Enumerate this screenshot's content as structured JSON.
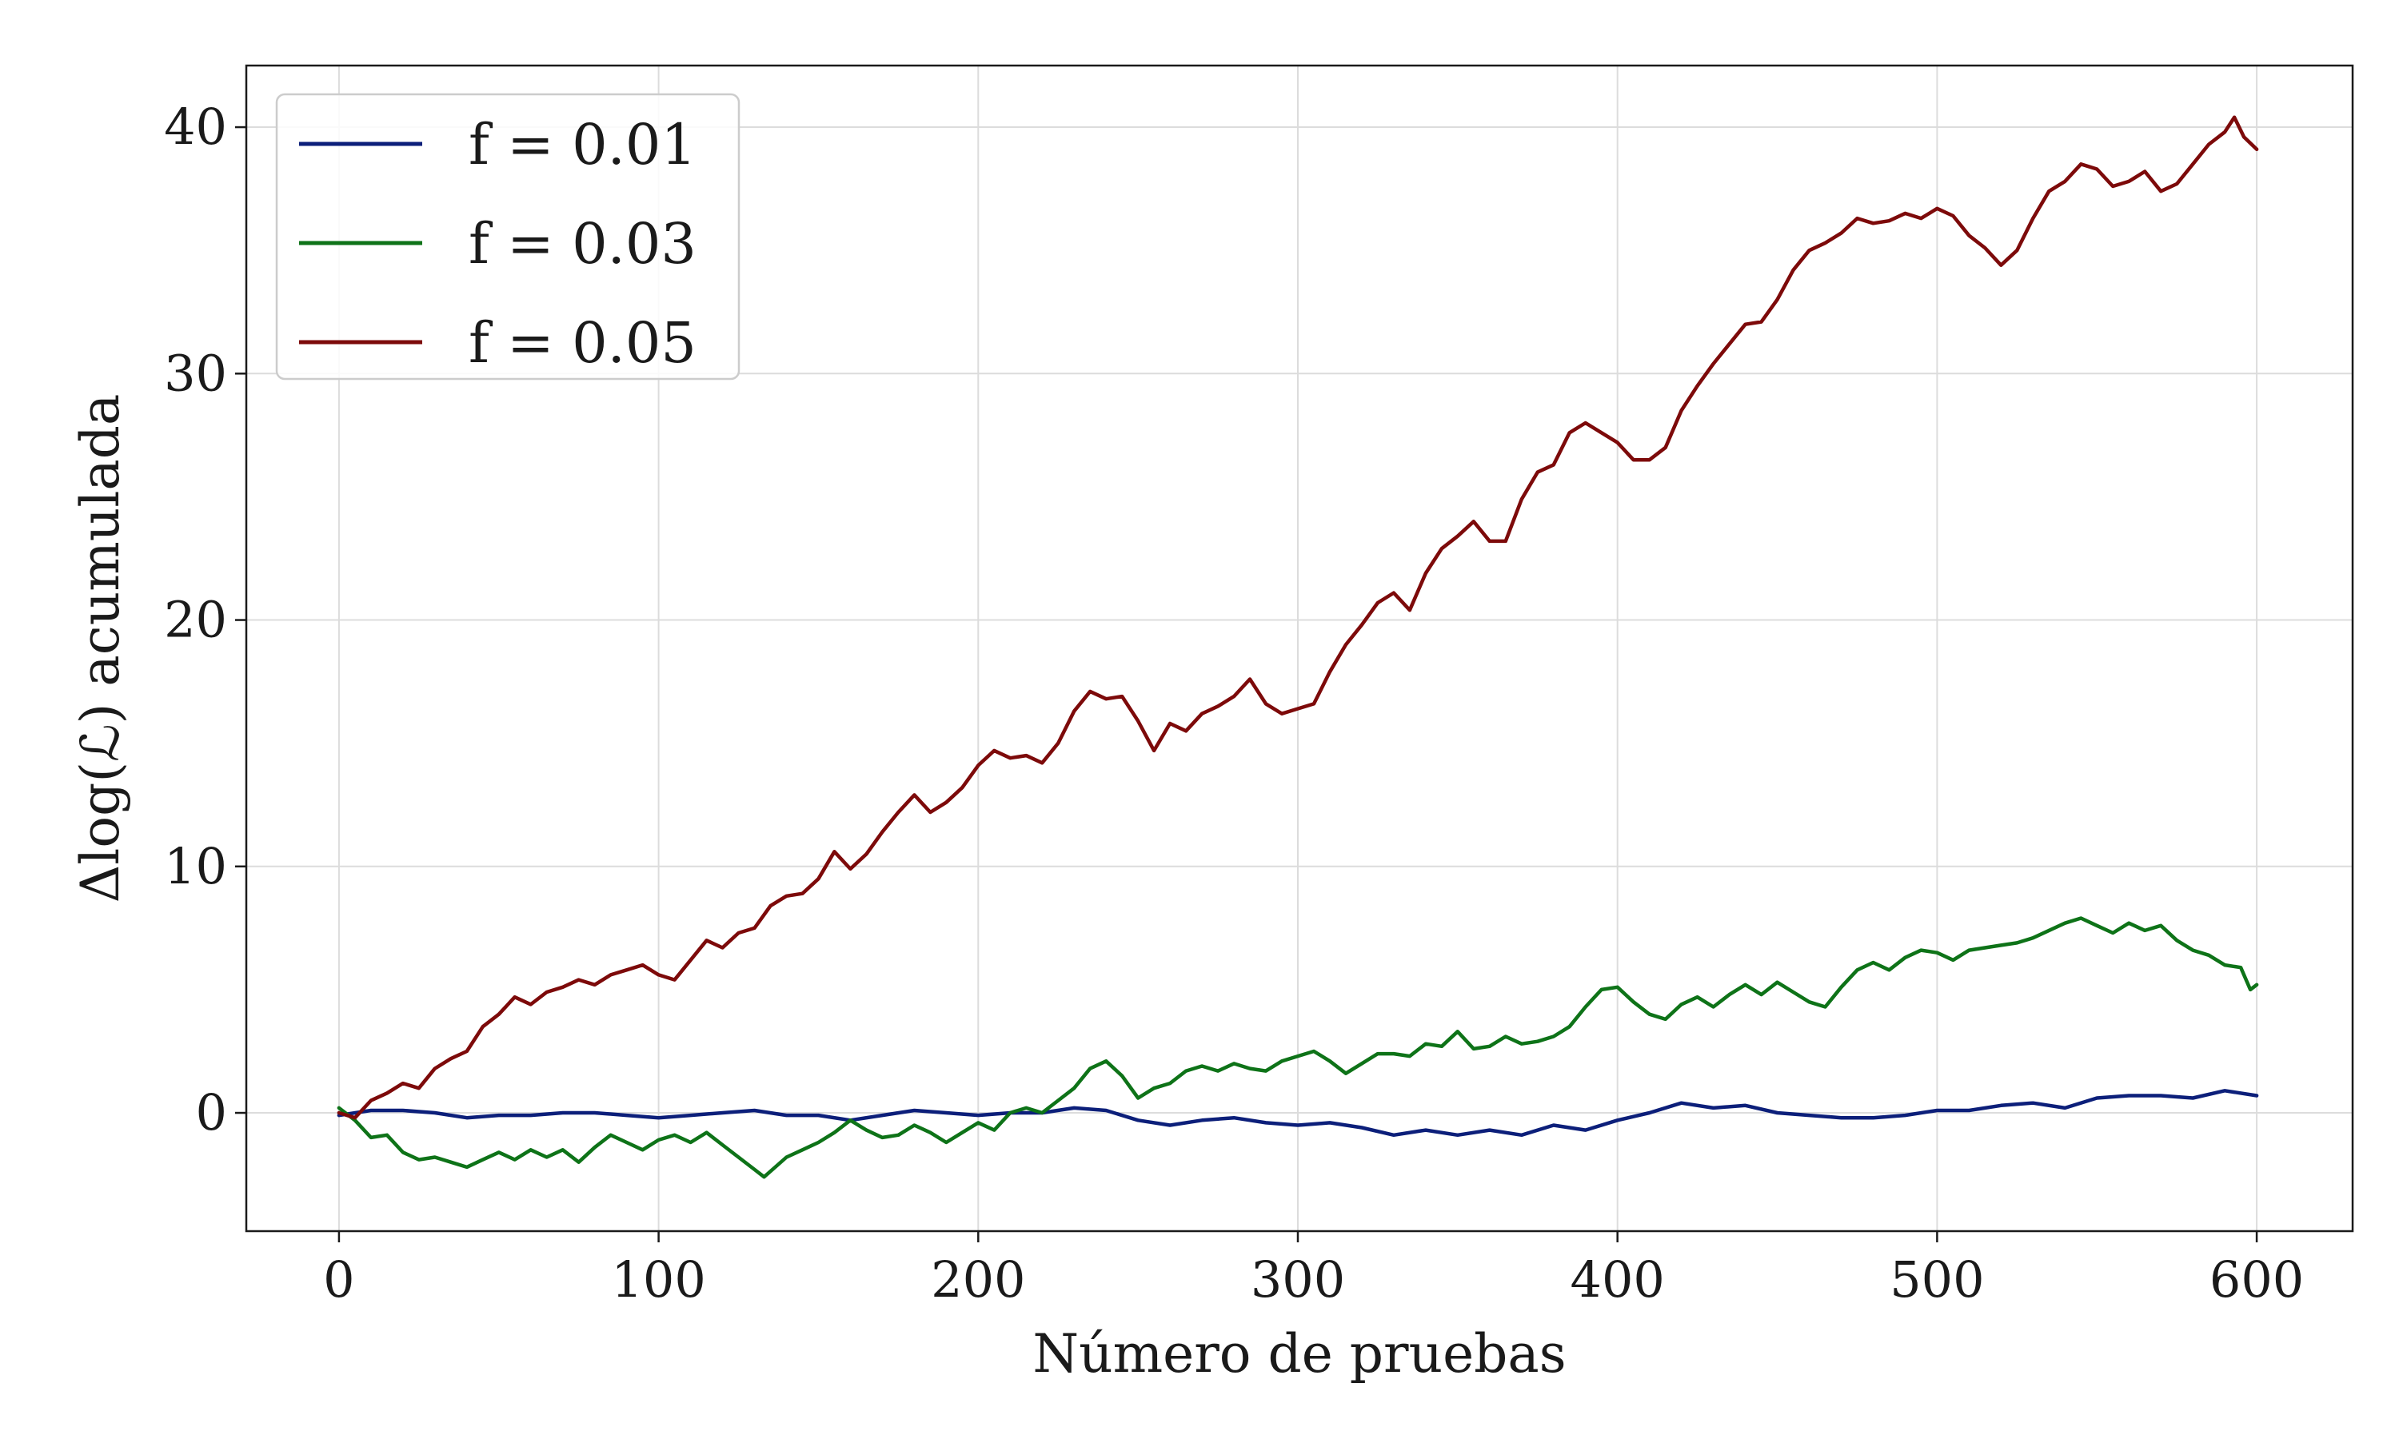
{
  "chart_data": {
    "type": "line",
    "title": "",
    "xlabel": "Número de pruebas",
    "ylabel": "Δlog(ℒ) acumulada",
    "xlim": [
      -29,
      630
    ],
    "ylim": [
      -4.8,
      42.5
    ],
    "xticks": [
      0,
      100,
      200,
      300,
      400,
      500,
      600
    ],
    "yticks": [
      0,
      10,
      20,
      30,
      40
    ],
    "xtick_labels": [
      "0",
      "100",
      "200",
      "300",
      "400",
      "500",
      "600"
    ],
    "ytick_labels": [
      "0",
      "10",
      "20",
      "30",
      "40"
    ],
    "grid": true,
    "legend_position": "upper-left",
    "series": [
      {
        "name": "f = 0.01",
        "color": "#0c1f7a",
        "points": [
          [
            0,
            -0.1
          ],
          [
            10,
            0.1
          ],
          [
            20,
            0.1
          ],
          [
            30,
            0.0
          ],
          [
            40,
            -0.2
          ],
          [
            50,
            -0.1
          ],
          [
            60,
            -0.1
          ],
          [
            70,
            0.0
          ],
          [
            80,
            0.0
          ],
          [
            90,
            -0.1
          ],
          [
            100,
            -0.2
          ],
          [
            110,
            -0.1
          ],
          [
            120,
            0.0
          ],
          [
            130,
            0.1
          ],
          [
            140,
            -0.1
          ],
          [
            150,
            -0.1
          ],
          [
            160,
            -0.3
          ],
          [
            170,
            -0.1
          ],
          [
            180,
            0.1
          ],
          [
            190,
            0.0
          ],
          [
            200,
            -0.1
          ],
          [
            210,
            0.0
          ],
          [
            220,
            0.0
          ],
          [
            230,
            0.2
          ],
          [
            240,
            0.1
          ],
          [
            250,
            -0.3
          ],
          [
            260,
            -0.5
          ],
          [
            270,
            -0.3
          ],
          [
            280,
            -0.2
          ],
          [
            290,
            -0.4
          ],
          [
            300,
            -0.5
          ],
          [
            310,
            -0.4
          ],
          [
            320,
            -0.6
          ],
          [
            330,
            -0.9
          ],
          [
            340,
            -0.7
          ],
          [
            350,
            -0.9
          ],
          [
            360,
            -0.7
          ],
          [
            370,
            -0.9
          ],
          [
            380,
            -0.5
          ],
          [
            390,
            -0.7
          ],
          [
            400,
            -0.3
          ],
          [
            410,
            0.0
          ],
          [
            420,
            0.4
          ],
          [
            430,
            0.2
          ],
          [
            440,
            0.3
          ],
          [
            450,
            0.0
          ],
          [
            460,
            -0.1
          ],
          [
            470,
            -0.2
          ],
          [
            480,
            -0.2
          ],
          [
            490,
            -0.1
          ],
          [
            500,
            0.1
          ],
          [
            510,
            0.1
          ],
          [
            520,
            0.3
          ],
          [
            530,
            0.4
          ],
          [
            540,
            0.2
          ],
          [
            550,
            0.6
          ],
          [
            560,
            0.7
          ],
          [
            570,
            0.7
          ],
          [
            580,
            0.6
          ],
          [
            590,
            0.9
          ],
          [
            600,
            0.7
          ]
        ]
      },
      {
        "name": "f = 0.03",
        "color": "#0e7318",
        "points": [
          [
            0,
            0.2
          ],
          [
            5,
            -0.3
          ],
          [
            10,
            -1.0
          ],
          [
            15,
            -0.9
          ],
          [
            20,
            -1.6
          ],
          [
            25,
            -1.9
          ],
          [
            30,
            -1.8
          ],
          [
            35,
            -2.0
          ],
          [
            40,
            -2.2
          ],
          [
            45,
            -1.9
          ],
          [
            50,
            -1.6
          ],
          [
            55,
            -1.9
          ],
          [
            60,
            -1.5
          ],
          [
            65,
            -1.8
          ],
          [
            70,
            -1.5
          ],
          [
            75,
            -2.0
          ],
          [
            80,
            -1.4
          ],
          [
            85,
            -0.9
          ],
          [
            90,
            -1.2
          ],
          [
            95,
            -1.5
          ],
          [
            100,
            -1.1
          ],
          [
            105,
            -0.9
          ],
          [
            110,
            -1.2
          ],
          [
            115,
            -0.8
          ],
          [
            120,
            -1.3
          ],
          [
            125,
            -1.8
          ],
          [
            130,
            -2.3
          ],
          [
            133,
            -2.6
          ],
          [
            140,
            -1.8
          ],
          [
            145,
            -1.5
          ],
          [
            150,
            -1.2
          ],
          [
            155,
            -0.8
          ],
          [
            160,
            -0.3
          ],
          [
            165,
            -0.7
          ],
          [
            170,
            -1.0
          ],
          [
            175,
            -0.9
          ],
          [
            180,
            -0.5
          ],
          [
            185,
            -0.8
          ],
          [
            190,
            -1.2
          ],
          [
            195,
            -0.8
          ],
          [
            200,
            -0.4
          ],
          [
            205,
            -0.7
          ],
          [
            210,
            0.0
          ],
          [
            215,
            0.2
          ],
          [
            220,
            0.0
          ],
          [
            225,
            0.5
          ],
          [
            230,
            1.0
          ],
          [
            235,
            1.8
          ],
          [
            240,
            2.1
          ],
          [
            245,
            1.5
          ],
          [
            250,
            0.6
          ],
          [
            255,
            1.0
          ],
          [
            260,
            1.2
          ],
          [
            265,
            1.7
          ],
          [
            270,
            1.9
          ],
          [
            275,
            1.7
          ],
          [
            280,
            2.0
          ],
          [
            285,
            1.8
          ],
          [
            290,
            1.7
          ],
          [
            295,
            2.1
          ],
          [
            300,
            2.3
          ],
          [
            305,
            2.5
          ],
          [
            310,
            2.1
          ],
          [
            315,
            1.6
          ],
          [
            320,
            2.0
          ],
          [
            325,
            2.4
          ],
          [
            330,
            2.4
          ],
          [
            335,
            2.3
          ],
          [
            340,
            2.8
          ],
          [
            345,
            2.7
          ],
          [
            350,
            3.3
          ],
          [
            355,
            2.6
          ],
          [
            360,
            2.7
          ],
          [
            365,
            3.1
          ],
          [
            370,
            2.8
          ],
          [
            375,
            2.9
          ],
          [
            380,
            3.1
          ],
          [
            385,
            3.5
          ],
          [
            390,
            4.3
          ],
          [
            395,
            5.0
          ],
          [
            400,
            5.1
          ],
          [
            405,
            4.5
          ],
          [
            410,
            4.0
          ],
          [
            415,
            3.8
          ],
          [
            420,
            4.4
          ],
          [
            425,
            4.7
          ],
          [
            430,
            4.3
          ],
          [
            435,
            4.8
          ],
          [
            440,
            5.2
          ],
          [
            445,
            4.8
          ],
          [
            450,
            5.3
          ],
          [
            455,
            4.9
          ],
          [
            460,
            4.5
          ],
          [
            465,
            4.3
          ],
          [
            470,
            5.1
          ],
          [
            475,
            5.8
          ],
          [
            480,
            6.1
          ],
          [
            485,
            5.8
          ],
          [
            490,
            6.3
          ],
          [
            495,
            6.6
          ],
          [
            500,
            6.5
          ],
          [
            505,
            6.2
          ],
          [
            510,
            6.6
          ],
          [
            515,
            6.7
          ],
          [
            520,
            6.8
          ],
          [
            525,
            6.9
          ],
          [
            530,
            7.1
          ],
          [
            535,
            7.4
          ],
          [
            540,
            7.7
          ],
          [
            545,
            7.9
          ],
          [
            550,
            7.6
          ],
          [
            555,
            7.3
          ],
          [
            560,
            7.7
          ],
          [
            565,
            7.4
          ],
          [
            570,
            7.6
          ],
          [
            575,
            7.0
          ],
          [
            580,
            6.6
          ],
          [
            585,
            6.4
          ],
          [
            590,
            6.0
          ],
          [
            595,
            5.9
          ],
          [
            598,
            5.0
          ],
          [
            600,
            5.2
          ]
        ]
      },
      {
        "name": "f = 0.05",
        "color": "#7d0a0a",
        "points": [
          [
            0,
            0.0
          ],
          [
            5,
            -0.2
          ],
          [
            10,
            0.5
          ],
          [
            15,
            0.8
          ],
          [
            20,
            1.2
          ],
          [
            25,
            1.0
          ],
          [
            30,
            1.8
          ],
          [
            35,
            2.2
          ],
          [
            40,
            2.5
          ],
          [
            45,
            3.5
          ],
          [
            50,
            4.0
          ],
          [
            55,
            4.7
          ],
          [
            60,
            4.4
          ],
          [
            65,
            4.9
          ],
          [
            70,
            5.1
          ],
          [
            75,
            5.4
          ],
          [
            80,
            5.2
          ],
          [
            85,
            5.6
          ],
          [
            90,
            5.8
          ],
          [
            95,
            6.0
          ],
          [
            100,
            5.6
          ],
          [
            105,
            5.4
          ],
          [
            110,
            6.2
          ],
          [
            115,
            7.0
          ],
          [
            120,
            6.7
          ],
          [
            125,
            7.3
          ],
          [
            130,
            7.5
          ],
          [
            135,
            8.4
          ],
          [
            140,
            8.8
          ],
          [
            145,
            8.9
          ],
          [
            150,
            9.5
          ],
          [
            155,
            10.6
          ],
          [
            160,
            9.9
          ],
          [
            165,
            10.5
          ],
          [
            170,
            11.4
          ],
          [
            175,
            12.2
          ],
          [
            180,
            12.9
          ],
          [
            185,
            12.2
          ],
          [
            190,
            12.6
          ],
          [
            195,
            13.2
          ],
          [
            200,
            14.1
          ],
          [
            205,
            14.7
          ],
          [
            210,
            14.4
          ],
          [
            215,
            14.5
          ],
          [
            220,
            14.2
          ],
          [
            225,
            15.0
          ],
          [
            230,
            16.3
          ],
          [
            235,
            17.1
          ],
          [
            240,
            16.8
          ],
          [
            245,
            16.9
          ],
          [
            250,
            15.9
          ],
          [
            255,
            14.7
          ],
          [
            260,
            15.8
          ],
          [
            265,
            15.5
          ],
          [
            270,
            16.2
          ],
          [
            275,
            16.5
          ],
          [
            280,
            16.9
          ],
          [
            285,
            17.6
          ],
          [
            290,
            16.6
          ],
          [
            295,
            16.2
          ],
          [
            300,
            16.4
          ],
          [
            305,
            16.6
          ],
          [
            310,
            17.9
          ],
          [
            315,
            19.0
          ],
          [
            320,
            19.8
          ],
          [
            325,
            20.7
          ],
          [
            330,
            21.1
          ],
          [
            335,
            20.4
          ],
          [
            340,
            21.9
          ],
          [
            345,
            22.9
          ],
          [
            350,
            23.4
          ],
          [
            355,
            24.0
          ],
          [
            360,
            23.2
          ],
          [
            365,
            23.2
          ],
          [
            370,
            24.9
          ],
          [
            375,
            26.0
          ],
          [
            380,
            26.3
          ],
          [
            385,
            27.6
          ],
          [
            390,
            28.0
          ],
          [
            395,
            27.6
          ],
          [
            400,
            27.2
          ],
          [
            405,
            26.5
          ],
          [
            410,
            26.5
          ],
          [
            415,
            27.0
          ],
          [
            420,
            28.5
          ],
          [
            425,
            29.5
          ],
          [
            430,
            30.4
          ],
          [
            435,
            31.2
          ],
          [
            440,
            32.0
          ],
          [
            445,
            32.1
          ],
          [
            450,
            33.0
          ],
          [
            455,
            34.2
          ],
          [
            460,
            35.0
          ],
          [
            465,
            35.3
          ],
          [
            470,
            35.7
          ],
          [
            475,
            36.3
          ],
          [
            480,
            36.1
          ],
          [
            485,
            36.2
          ],
          [
            490,
            36.5
          ],
          [
            495,
            36.3
          ],
          [
            500,
            36.7
          ],
          [
            505,
            36.4
          ],
          [
            510,
            35.6
          ],
          [
            515,
            35.1
          ],
          [
            520,
            34.4
          ],
          [
            525,
            35.0
          ],
          [
            530,
            36.3
          ],
          [
            535,
            37.4
          ],
          [
            540,
            37.8
          ],
          [
            545,
            38.5
          ],
          [
            550,
            38.3
          ],
          [
            555,
            37.6
          ],
          [
            560,
            37.8
          ],
          [
            565,
            38.2
          ],
          [
            570,
            37.4
          ],
          [
            575,
            37.7
          ],
          [
            580,
            38.5
          ],
          [
            585,
            39.3
          ],
          [
            590,
            39.8
          ],
          [
            593,
            40.4
          ],
          [
            596,
            39.6
          ],
          [
            600,
            39.1
          ]
        ]
      }
    ]
  }
}
